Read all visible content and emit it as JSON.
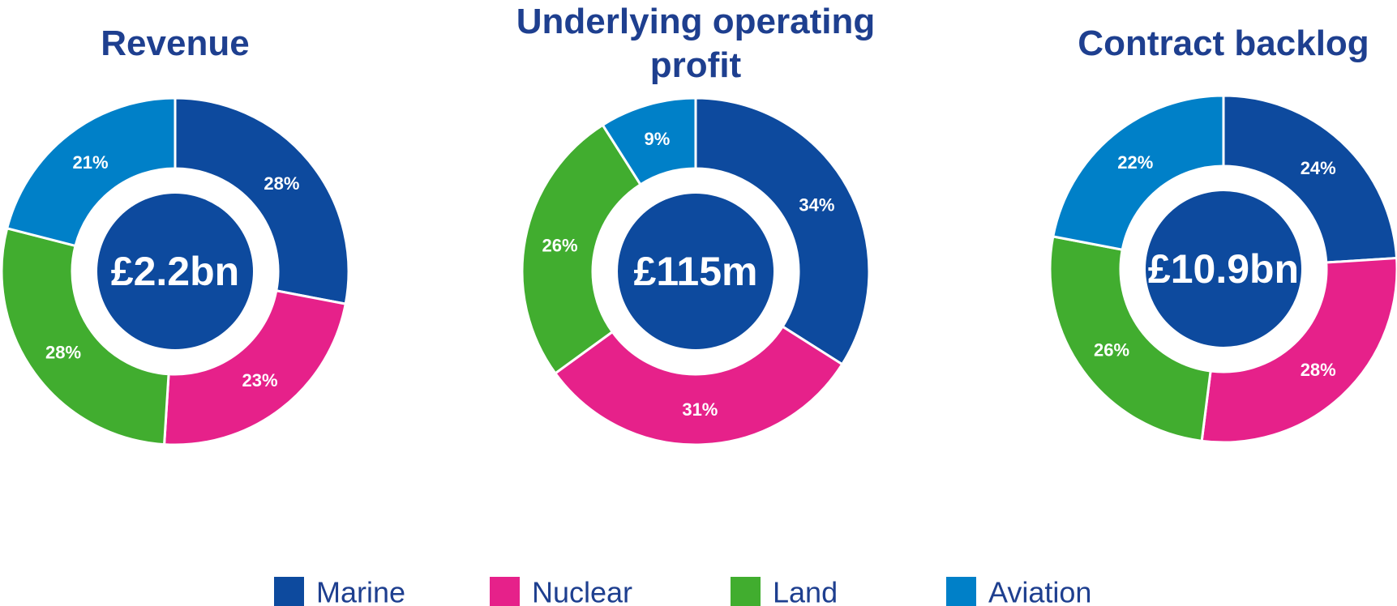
{
  "chart_data": [
    {
      "type": "pie",
      "title": "Revenue",
      "center_label": "£2.2bn",
      "categories": [
        "Marine",
        "Nuclear",
        "Land",
        "Aviation"
      ],
      "colors": [
        "#0d4a9e",
        "#e6218a",
        "#41ad2f",
        "#0080c8"
      ],
      "values": [
        28,
        23,
        28,
        21
      ],
      "value_labels": [
        "28%",
        "23%",
        "28%",
        "21%"
      ]
    },
    {
      "type": "pie",
      "title": "Underlying operating profit",
      "center_label": "£115m",
      "categories": [
        "Marine",
        "Nuclear",
        "Land",
        "Aviation"
      ],
      "colors": [
        "#0d4a9e",
        "#e6218a",
        "#41ad2f",
        "#0080c8"
      ],
      "values": [
        34,
        31,
        26,
        9
      ],
      "value_labels": [
        "34%",
        "31%",
        "26%",
        "9%"
      ]
    },
    {
      "type": "pie",
      "title": "Contract backlog",
      "center_label": "£10.9bn",
      "categories": [
        "Marine",
        "Nuclear",
        "Land",
        "Aviation"
      ],
      "colors": [
        "#0d4a9e",
        "#e6218a",
        "#41ad2f",
        "#0080c8"
      ],
      "values": [
        24,
        28,
        26,
        22
      ],
      "value_labels": [
        "24%",
        "28%",
        "26%",
        "22%"
      ]
    }
  ]
}
